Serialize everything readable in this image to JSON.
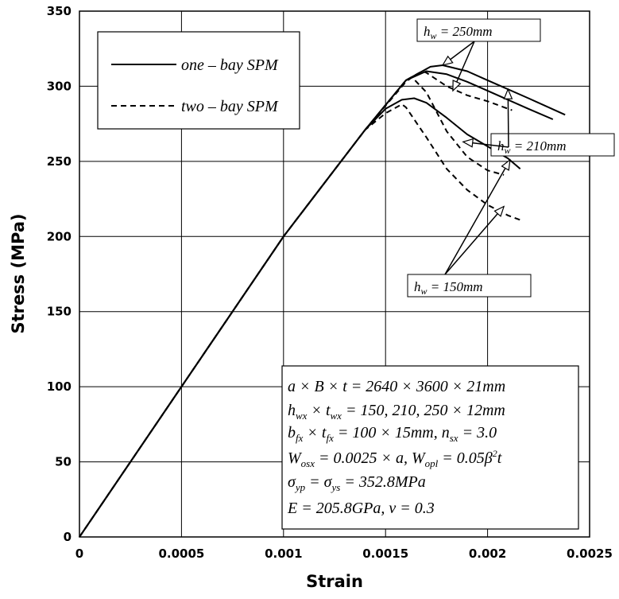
{
  "chart_data": {
    "type": "line",
    "xlabel": "Strain",
    "ylabel": "Stress (MPa)",
    "xlim": [
      0,
      0.0025
    ],
    "ylim": [
      0,
      350
    ],
    "xticks": [
      "0",
      "0.0005",
      "0.001",
      "0.0015",
      "0.002",
      "0.0025"
    ],
    "yticks": [
      "0",
      "50",
      "100",
      "150",
      "200",
      "250",
      "300",
      "350"
    ],
    "legend": {
      "placement": "top-left",
      "entries": [
        {
          "label": "one – bay SPM",
          "style": "solid"
        },
        {
          "label": "two – bay SPM",
          "style": "dashed"
        }
      ]
    },
    "series": [
      {
        "name": "one – bay SPM",
        "case": "h_w = 250mm",
        "style": "solid",
        "points": [
          [
            0,
            0
          ],
          [
            0.0005,
            100
          ],
          [
            0.001,
            200
          ],
          [
            0.0014,
            271
          ],
          [
            0.0016,
            304
          ],
          [
            0.00172,
            313
          ],
          [
            0.00178,
            314
          ],
          [
            0.0019,
            310
          ],
          [
            0.002,
            304
          ],
          [
            0.0022,
            292
          ],
          [
            0.00238,
            281
          ]
        ]
      },
      {
        "name": "one – bay SPM",
        "case": "h_w = 210mm",
        "style": "solid",
        "points": [
          [
            0,
            0
          ],
          [
            0.0005,
            100
          ],
          [
            0.001,
            200
          ],
          [
            0.0014,
            271
          ],
          [
            0.0016,
            304
          ],
          [
            0.0017,
            310
          ],
          [
            0.0018,
            308
          ],
          [
            0.0019,
            303
          ],
          [
            0.002,
            297
          ],
          [
            0.0022,
            285
          ],
          [
            0.00232,
            278
          ]
        ]
      },
      {
        "name": "one – bay SPM",
        "case": "h_w = 150mm",
        "style": "solid",
        "points": [
          [
            0,
            0
          ],
          [
            0.0005,
            100
          ],
          [
            0.001,
            200
          ],
          [
            0.0014,
            271
          ],
          [
            0.0015,
            285
          ],
          [
            0.00158,
            291
          ],
          [
            0.00164,
            292
          ],
          [
            0.0017,
            289
          ],
          [
            0.0018,
            279
          ],
          [
            0.0019,
            268
          ],
          [
            0.002,
            260
          ],
          [
            0.0021,
            252
          ],
          [
            0.00216,
            245
          ]
        ]
      },
      {
        "name": "two – bay SPM",
        "case": "h_w = 250mm",
        "style": "dashed",
        "points": [
          [
            0,
            0
          ],
          [
            0.0005,
            100
          ],
          [
            0.001,
            200
          ],
          [
            0.0014,
            271
          ],
          [
            0.0016,
            304
          ],
          [
            0.00168,
            310
          ],
          [
            0.0017,
            309
          ],
          [
            0.0018,
            300
          ],
          [
            0.0019,
            294
          ],
          [
            0.002,
            290
          ],
          [
            0.00212,
            284
          ]
        ]
      },
      {
        "name": "two – bay SPM",
        "case": "h_w = 210mm",
        "style": "dashed",
        "points": [
          [
            0,
            0
          ],
          [
            0.0005,
            100
          ],
          [
            0.001,
            200
          ],
          [
            0.0014,
            271
          ],
          [
            0.0016,
            303
          ],
          [
            0.00163,
            306
          ],
          [
            0.0017,
            296
          ],
          [
            0.0018,
            270
          ],
          [
            0.0019,
            253
          ],
          [
            0.002,
            244
          ],
          [
            0.00208,
            241
          ]
        ]
      },
      {
        "name": "two – bay SPM",
        "case": "h_w = 150mm",
        "style": "dashed",
        "points": [
          [
            0,
            0
          ],
          [
            0.0005,
            100
          ],
          [
            0.001,
            200
          ],
          [
            0.0014,
            271
          ],
          [
            0.0015,
            282
          ],
          [
            0.00158,
            288
          ],
          [
            0.0016,
            286
          ],
          [
            0.0017,
            266
          ],
          [
            0.0018,
            245
          ],
          [
            0.0019,
            231
          ],
          [
            0.002,
            221
          ],
          [
            0.0021,
            214
          ],
          [
            0.00216,
            211
          ]
        ]
      }
    ],
    "annotations": [
      {
        "text": "h_w = 250mm",
        "arrow_targets": [
          [
            0.00178,
            314
          ],
          [
            0.00183,
            297
          ]
        ]
      },
      {
        "text": "h_w = 210mm",
        "arrow_targets": [
          [
            0.0021,
            298
          ],
          [
            0.00188,
            263
          ]
        ]
      },
      {
        "text": "h_w = 150mm",
        "arrow_targets": [
          [
            0.00211,
            251
          ],
          [
            0.00208,
            220
          ]
        ]
      }
    ],
    "info_box": [
      "a × B × t = 2640 × 3600 × 21mm",
      "h_wx × t_wx = 150, 210, 250 × 12mm",
      "b_fx × t_fx = 100 × 15mm,  n_sx = 3.0",
      "W_osx = 0.0025 × a,  W_opl = 0.05β²t",
      "σ_yp = σ_ys = 352.8MPa",
      "E = 205.8GPa,  ν = 0.3"
    ]
  }
}
